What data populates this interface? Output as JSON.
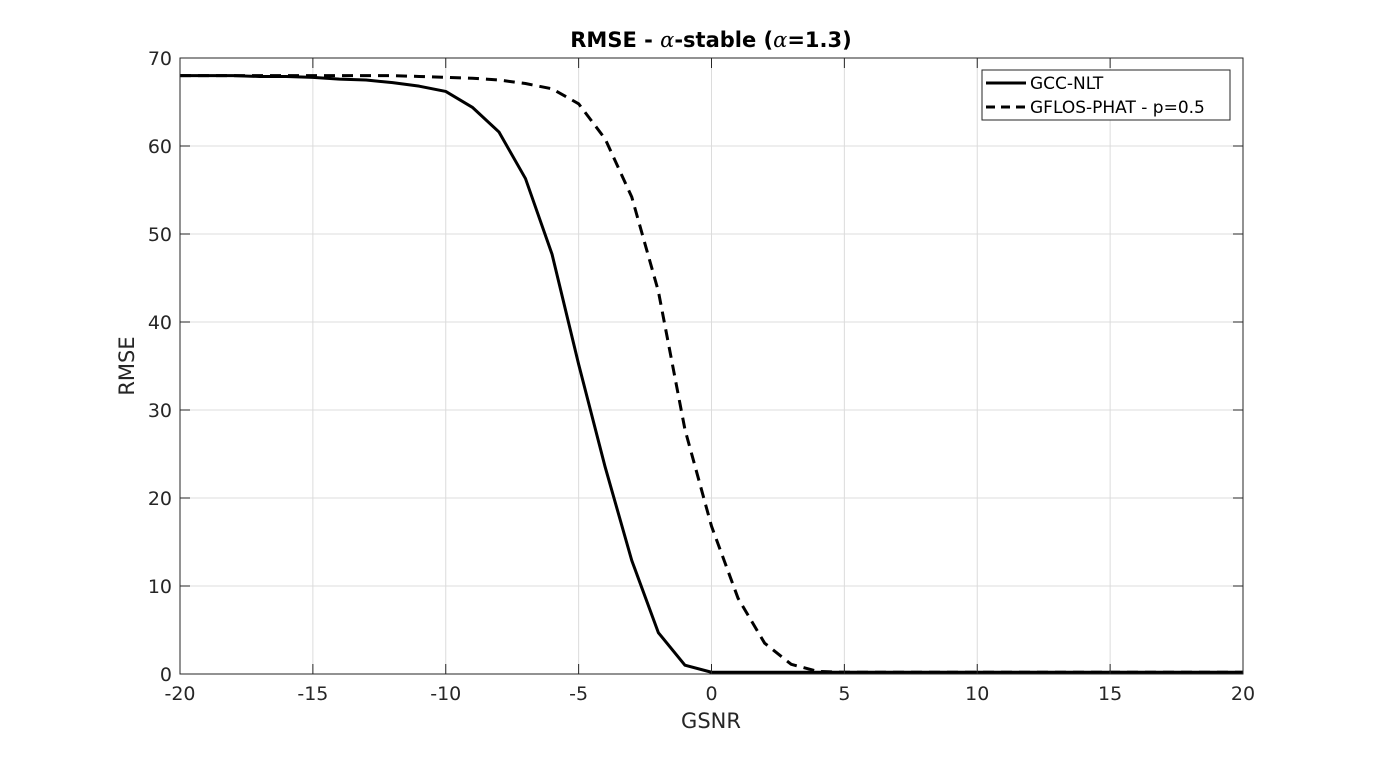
{
  "chart_data": {
    "type": "line",
    "title_prefix": "RMSE - ",
    "title_alpha": "α",
    "title_middle": "-stable (",
    "title_alpha2": "α",
    "title_suffix": "=1.3)",
    "xlabel": "GSNR",
    "ylabel": "RMSE",
    "xlim": [
      -20,
      20
    ],
    "ylim": [
      0,
      70
    ],
    "xticks": [
      "-20",
      "-15",
      "-10",
      "-5",
      "0",
      "5",
      "10",
      "15",
      "20"
    ],
    "yticks": [
      "0",
      "10",
      "20",
      "30",
      "40",
      "50",
      "60",
      "70"
    ],
    "grid": true,
    "legend_position": "top-right",
    "series": [
      {
        "name": "GCC-NLT",
        "style": "solid",
        "color": "#000000",
        "x": [
          -20,
          -19,
          -18,
          -17,
          -16,
          -15,
          -14,
          -13,
          -12,
          -11,
          -10,
          -9,
          -8,
          -7,
          -6,
          -5,
          -4,
          -3,
          -2,
          -1,
          0,
          1,
          2,
          3,
          4,
          5,
          6,
          7,
          8,
          9,
          10,
          11,
          12,
          13,
          14,
          15,
          16,
          17,
          18,
          19,
          20
        ],
        "y": [
          68,
          68,
          68,
          67.9,
          67.9,
          67.8,
          67.6,
          67.5,
          67.2,
          66.8,
          66.2,
          64.4,
          61.6,
          56.3,
          47.7,
          35.2,
          23.5,
          12.9,
          4.7,
          1.0,
          0.2,
          0.2,
          0.2,
          0.2,
          0.2,
          0.2,
          0.2,
          0.2,
          0.2,
          0.2,
          0.2,
          0.2,
          0.2,
          0.2,
          0.2,
          0.2,
          0.2,
          0.2,
          0.2,
          0.2,
          0.2
        ]
      },
      {
        "name": "GFLOS-PHAT - p=0.5",
        "style": "dashed",
        "color": "#000000",
        "x": [
          -20,
          -19,
          -18,
          -17,
          -16,
          -15,
          -14,
          -13,
          -12,
          -11,
          -10,
          -9,
          -8,
          -7,
          -6,
          -5,
          -4,
          -3,
          -2,
          -1,
          0,
          1,
          2,
          3,
          4,
          5,
          6,
          7,
          8,
          9,
          10,
          11,
          12,
          13,
          14,
          15,
          16,
          17,
          18,
          19,
          20
        ],
        "y": [
          68,
          68,
          68,
          68,
          68,
          68,
          68,
          68,
          68,
          67.9,
          67.8,
          67.7,
          67.5,
          67.1,
          66.5,
          64.8,
          60.8,
          54.2,
          43.5,
          27.8,
          16.8,
          8.6,
          3.5,
          1.1,
          0.3,
          0.2,
          0.2,
          0.2,
          0.2,
          0.2,
          0.2,
          0.2,
          0.2,
          0.2,
          0.2,
          0.2,
          0.2,
          0.2,
          0.2,
          0.2,
          0.2
        ]
      }
    ]
  }
}
